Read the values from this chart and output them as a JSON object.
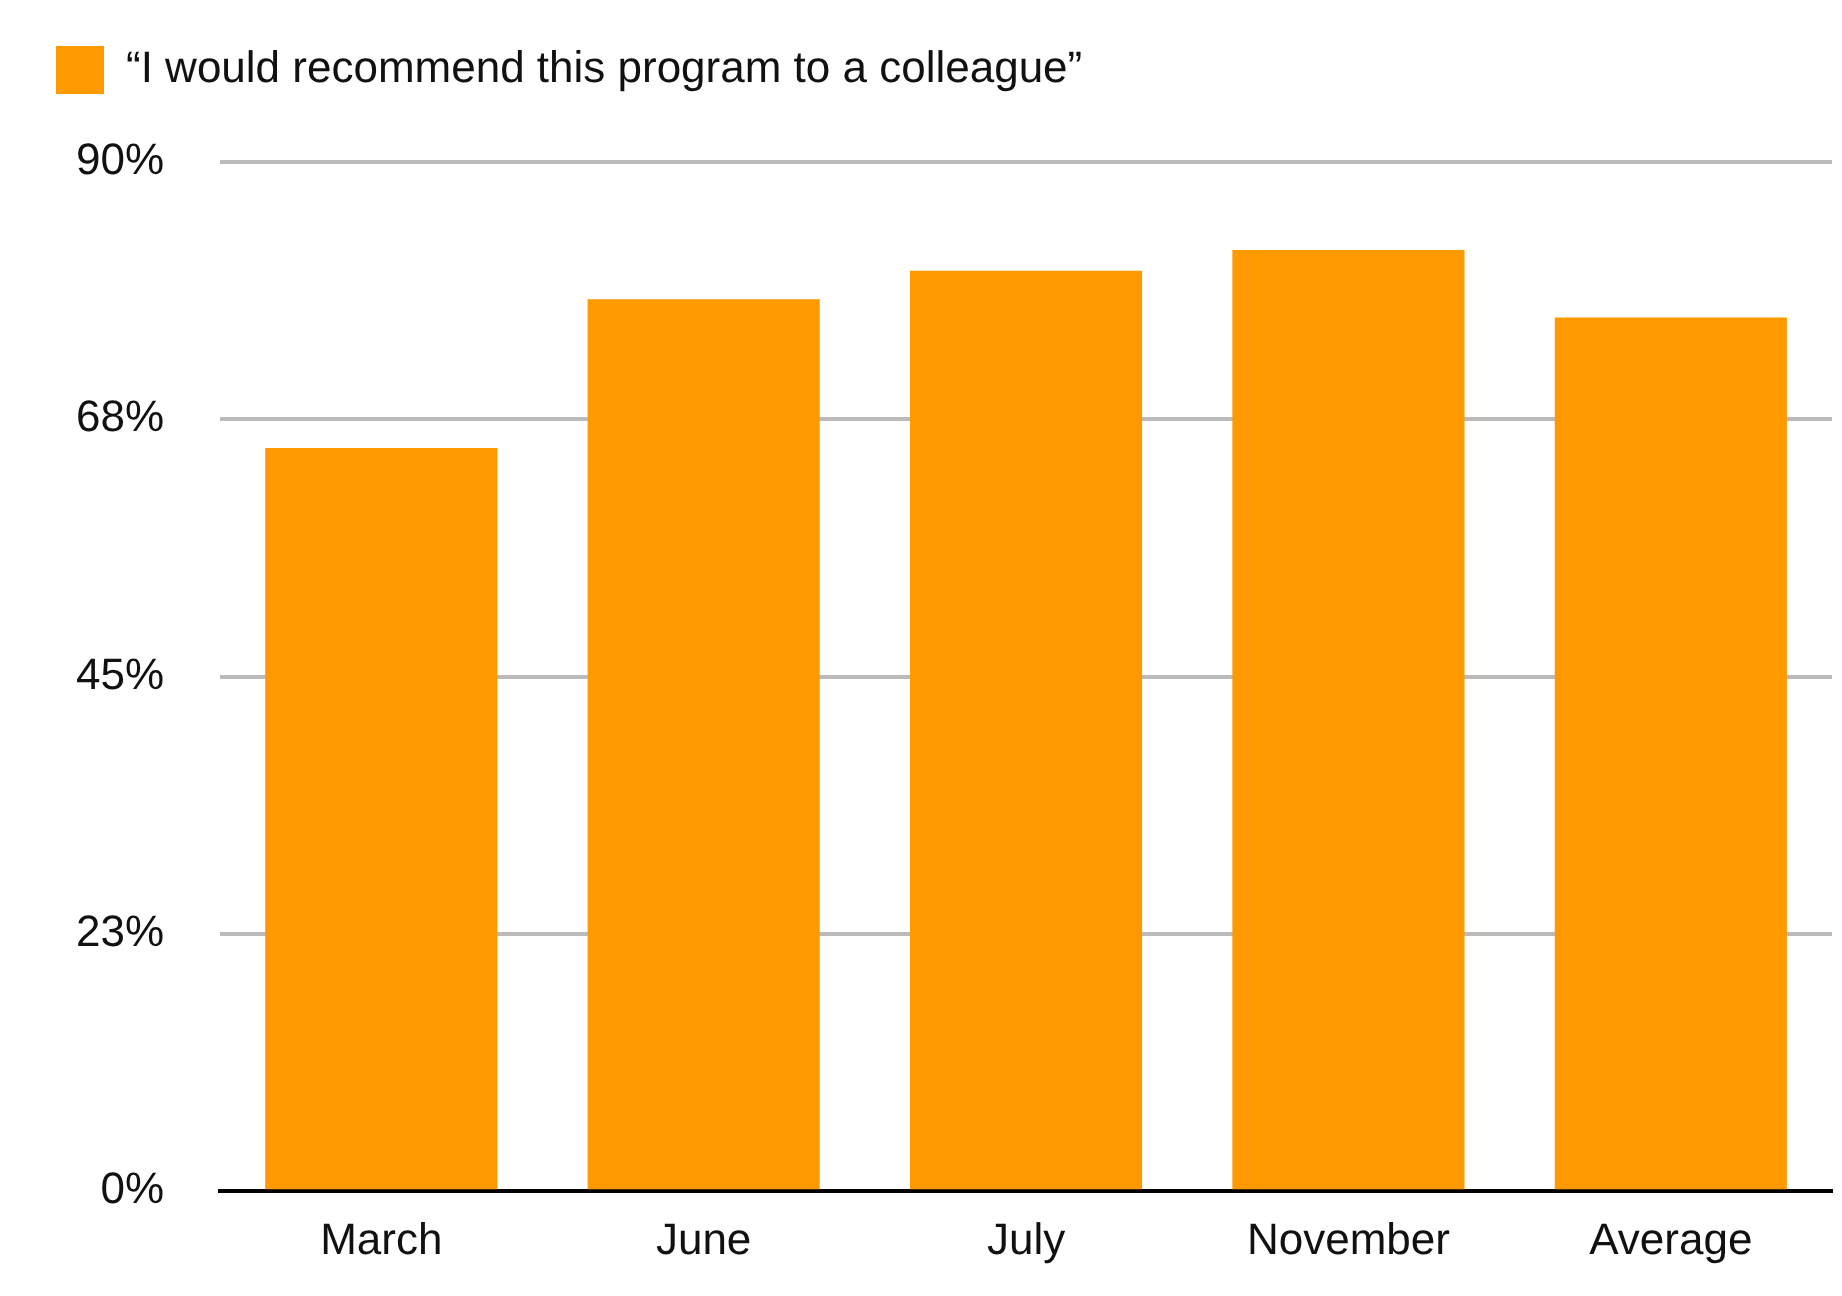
{
  "chart_data": {
    "type": "bar",
    "categories": [
      "March",
      "June",
      "July",
      "November",
      "Average"
    ],
    "series": [
      {
        "name": "“I would recommend this program to a colleague”",
        "color": "#ff9900",
        "values": [
          65,
          78,
          80.5,
          82.3,
          76.4
        ]
      }
    ],
    "ylim": [
      0,
      90
    ],
    "yticks": [
      {
        "value": 0,
        "label": "0%"
      },
      {
        "value": 22.5,
        "label": "23%"
      },
      {
        "value": 45,
        "label": "45%"
      },
      {
        "value": 67.5,
        "label": "68%"
      },
      {
        "value": 90,
        "label": "90%"
      }
    ],
    "grid": "y",
    "legend": "top left"
  }
}
